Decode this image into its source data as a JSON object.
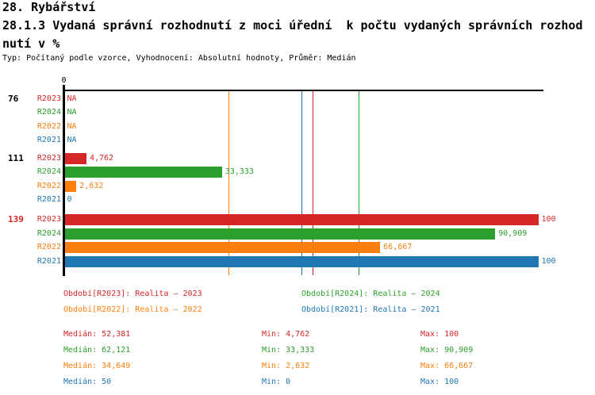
{
  "header": {
    "title": "28. Rybářství",
    "subtitle_line1": "28.1.3 Vydaná správní rozhodnutí z moci úřední  k počtu vydaných správních rozhod",
    "subtitle_line2": "nutí v %",
    "meta": "Typ: Počítaný podle vzorce, Vyhodnocení: Absolutní hodnoty, Průměr: Medián"
  },
  "colors": {
    "red": "#d62728",
    "green": "#2ca02c",
    "orange": "#ff7f0e",
    "blue": "#1f77b4",
    "black": "#000000"
  },
  "chart_data": {
    "type": "bar",
    "orientation": "horizontal",
    "unit": "%",
    "axis": {
      "tick_label": "0",
      "min": 0,
      "max": 100,
      "grid": false
    },
    "series_colors": {
      "R2023": "#d62728",
      "R2024": "#2ca02c",
      "R2022": "#ff7f0e",
      "R2021": "#1f77b4"
    },
    "groups": [
      {
        "label": "76",
        "label_color": "#000000",
        "rows": [
          {
            "series": "R2023",
            "value": null,
            "display": "NA"
          },
          {
            "series": "R2024",
            "value": null,
            "display": "NA"
          },
          {
            "series": "R2022",
            "value": null,
            "display": "NA"
          },
          {
            "series": "R2021",
            "value": null,
            "display": "NA"
          }
        ]
      },
      {
        "label": "111",
        "label_color": "#000000",
        "rows": [
          {
            "series": "R2023",
            "value": 4.762,
            "display": "4,762"
          },
          {
            "series": "R2024",
            "value": 33.333,
            "display": "33,333"
          },
          {
            "series": "R2022",
            "value": 2.632,
            "display": "2,632"
          },
          {
            "series": "R2021",
            "value": 0,
            "display": "0"
          }
        ]
      },
      {
        "label": "139",
        "label_color": "#d62728",
        "rows": [
          {
            "series": "R2023",
            "value": 100,
            "display": "100"
          },
          {
            "series": "R2024",
            "value": 90.909,
            "display": "90,909"
          },
          {
            "series": "R2022",
            "value": 66.667,
            "display": "66,667"
          },
          {
            "series": "R2021",
            "value": 100,
            "display": "100"
          }
        ]
      }
    ],
    "median_lines": [
      {
        "series": "R2022",
        "value": 34.649,
        "color": "#ff7f0e"
      },
      {
        "series": "R2021",
        "value": 50,
        "color": "#1f77b4"
      },
      {
        "series": "R2023",
        "value": 52.381,
        "color": "#d62728"
      },
      {
        "series": "R2024",
        "value": 62.121,
        "color": "#2ca02c"
      }
    ]
  },
  "legend": {
    "items": [
      {
        "series": "R2023",
        "label": "Období[R2023]: Realita – 2023",
        "color": "#d62728"
      },
      {
        "series": "R2024",
        "label": "Období[R2024]: Realita – 2024",
        "color": "#2ca02c"
      },
      {
        "series": "R2022",
        "label": "Období[R2022]: Realita – 2022",
        "color": "#ff7f0e"
      },
      {
        "series": "R2021",
        "label": "Období[R2021]: Realita – 2021",
        "color": "#1f77b4"
      }
    ]
  },
  "stats": {
    "rows": [
      {
        "series": "R2023",
        "color": "#d62728",
        "median": 52.381,
        "min": 4.762,
        "max": 100,
        "median_display": "Medián: 52,381",
        "min_display": "Min: 4,762",
        "max_display": "Max: 100"
      },
      {
        "series": "R2024",
        "color": "#2ca02c",
        "median": 62.121,
        "min": 33.333,
        "max": 90.909,
        "median_display": "Medián: 62,121",
        "min_display": "Min: 33,333",
        "max_display": "Max: 90,909"
      },
      {
        "series": "R2022",
        "color": "#ff7f0e",
        "median": 34.649,
        "min": 2.632,
        "max": 66.667,
        "median_display": "Medián: 34,649",
        "min_display": "Min: 2,632",
        "max_display": "Max: 66,667"
      },
      {
        "series": "R2021",
        "color": "#1f77b4",
        "median": 50,
        "min": 0,
        "max": 100,
        "median_display": "Medián: 50",
        "min_display": "Min: 0",
        "max_display": "Max: 100"
      }
    ]
  }
}
